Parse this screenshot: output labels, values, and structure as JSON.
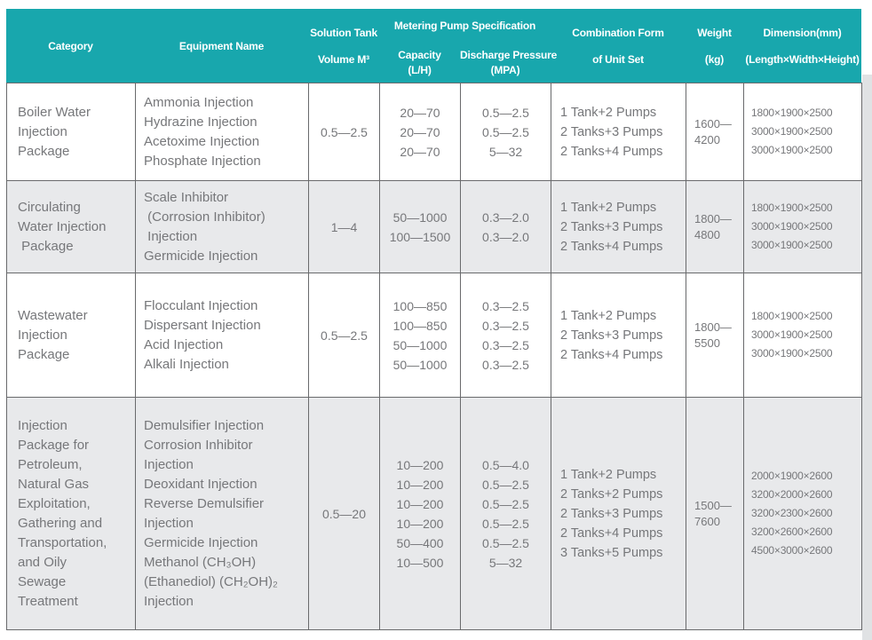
{
  "palette": {
    "header_teal": "#18a7ad",
    "alt_row_gray": "#e8e9eb",
    "grid_border_gray": "#696a6c",
    "body_text_gray": "#76777a",
    "side_band_gray": "#e0e2e4"
  },
  "header": {
    "category": "Category",
    "equipment": "Equipment Name",
    "solution_tank": "Solution Tank\nVolume M³",
    "metering": "Metering Pump Specification",
    "capacity": "Capacity\n(L/H)",
    "discharge": "Discharge Pressure\n(MPA)",
    "combination": "Combination Form\nof Unit Set",
    "weight": "Weight\n(kg)",
    "dimension": "Dimension(mm)\n(Length×Width×Height)"
  },
  "rows": [
    {
      "category": "Boiler Water\nInjection\nPackage",
      "equipment": [
        "Ammonia Injection",
        "Hydrazine Injection",
        "Acetoxime Injection",
        "Phosphate Injection"
      ],
      "tank_volume": "0.5—2.5",
      "capacity": [
        "20—70",
        "20—70",
        "20—70"
      ],
      "discharge": [
        "0.5—2.5",
        "0.5—2.5",
        "5—32"
      ],
      "combination": [
        "1 Tank+2 Pumps",
        "2 Tanks+3 Pumps",
        "2 Tanks+4 Pumps"
      ],
      "weight": "1600—\n4200",
      "dimension": [
        "1800×1900×2500",
        "3000×1900×2500",
        "3000×1900×2500"
      ]
    },
    {
      "category": "Circulating\nWater Injection\n Package",
      "equipment": [
        "Scale Inhibitor",
        " (Corrosion Inhibitor)",
        " Injection",
        "Germicide Injection"
      ],
      "tank_volume": "1—4",
      "capacity": [
        "50—1000",
        "100—1500"
      ],
      "discharge": [
        "0.3—2.0",
        "0.3—2.0"
      ],
      "combination": [
        "1 Tank+2 Pumps",
        "2 Tanks+3 Pumps",
        "2 Tanks+4 Pumps"
      ],
      "weight": "1800—\n4800",
      "dimension": [
        "1800×1900×2500",
        "3000×1900×2500",
        "3000×1900×2500"
      ]
    },
    {
      "category": "Wastewater\nInjection\nPackage",
      "equipment": [
        "Flocculant Injection",
        "Dispersant Injection",
        "Acid Injection",
        "Alkali Injection"
      ],
      "tank_volume": "0.5—2.5",
      "capacity": [
        "100—850",
        "100—850",
        "50—1000",
        "50—1000"
      ],
      "discharge": [
        "0.3—2.5",
        "0.3—2.5",
        "0.3—2.5",
        "0.3—2.5"
      ],
      "combination": [
        "1 Tank+2 Pumps",
        "2 Tanks+3 Pumps",
        "2 Tanks+4 Pumps"
      ],
      "weight": "1800—\n5500",
      "dimension": [
        "1800×1900×2500",
        "3000×1900×2500",
        "3000×1900×2500"
      ]
    },
    {
      "category": "Injection\nPackage for\nPetroleum,\nNatural Gas\nExploitation,\nGathering and\nTransportation,\nand Oily\nSewage\nTreatment",
      "equipment": [
        "Demulsifier Injection",
        "Corrosion Inhibitor",
        "Injection",
        "Deoxidant Injection",
        "Reverse Demulsifier",
        "Injection",
        "Germicide Injection",
        "Methanol (CH₃OH)",
        "(Ethanediol) (CH₂OH)₂",
        "Injection"
      ],
      "tank_volume": "0.5—20",
      "capacity": [
        "10—200",
        "10—200",
        "10—200",
        "10—200",
        "50—400",
        "10—500"
      ],
      "discharge": [
        "0.5—4.0",
        "0.5—2.5",
        "0.5—2.5",
        "0.5—2.5",
        "0.5—2.5",
        "5—32"
      ],
      "combination": [
        "1 Tank+2 Pumps",
        "2 Tanks+2 Pumps",
        "2 Tanks+3 Pumps",
        "2 Tanks+4 Pumps",
        "3 Tanks+5 Pumps"
      ],
      "weight": "1500—\n7600",
      "dimension": [
        "2000×1900×2600",
        "3200×2000×2600",
        "3200×2300×2600",
        "3200×2600×2600",
        "4500×3000×2600"
      ]
    }
  ]
}
